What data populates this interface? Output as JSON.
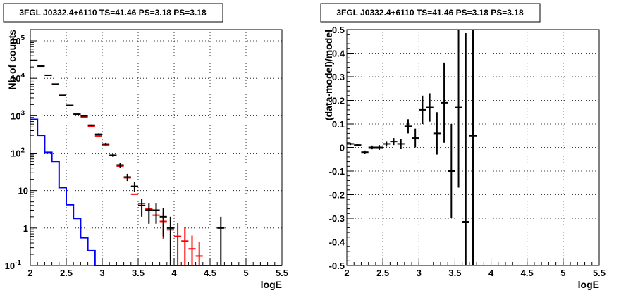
{
  "chart_data": [
    {
      "type": "histogram",
      "title": "3FGL J0332.4+6110 TS=41.46 PS=3.18 PS=3.18",
      "xlabel": "logE",
      "ylabel": "Nb of counts",
      "xlim": [
        2,
        5.5
      ],
      "ylim": [
        0.1,
        200000
      ],
      "yscale": "log",
      "grid": true,
      "xticks": [
        "2",
        "2.5",
        "3",
        "3.5",
        "4",
        "4.5",
        "5",
        "5.5"
      ],
      "yticks": [
        "10^{-1}",
        "1",
        "10",
        "10^{2}",
        "10^{3}",
        "10^{4}",
        "10^{5}"
      ],
      "colors": {
        "data": "#000000",
        "model": "#ff0000",
        "background": "#0000ff"
      },
      "series": [
        {
          "kind": "model-points",
          "x": [
            2.05,
            2.15,
            2.25,
            2.35,
            2.45,
            2.55,
            2.65,
            2.75,
            2.85,
            2.95,
            3.05,
            3.15,
            3.25,
            3.35,
            3.45,
            3.55,
            3.65,
            3.75,
            3.85,
            3.95,
            4.05,
            4.15,
            4.25,
            4.35
          ],
          "y": [
            30000,
            21000,
            12000,
            7000,
            3500,
            1900,
            1100,
            920,
            530,
            290,
            165,
            87,
            45,
            22,
            8,
            4.5,
            3.2,
            2.2,
            1.5,
            0.9,
            0.6,
            0.45,
            0.28,
            0.18
          ],
          "yerr_low": [
            0,
            0,
            0,
            0,
            0,
            0,
            0,
            0,
            0,
            0,
            0,
            0,
            0,
            0,
            0,
            0,
            0,
            0,
            0.98,
            0.75,
            0.52,
            0.4,
            0.25,
            0.17
          ],
          "yerr_high": [
            0,
            0,
            0,
            0,
            0,
            0,
            0,
            0,
            0,
            0,
            0,
            0,
            0,
            0,
            0,
            0,
            0,
            0,
            1.2,
            1.1,
            0.8,
            0.6,
            0.35,
            0.25
          ]
        },
        {
          "kind": "data-points",
          "x": [
            2.05,
            2.15,
            2.25,
            2.35,
            2.45,
            2.55,
            2.65,
            2.75,
            2.85,
            2.95,
            3.05,
            3.15,
            3.25,
            3.35,
            3.45,
            3.55,
            3.65,
            3.75,
            3.85,
            3.95,
            4.65
          ],
          "y": [
            30000,
            21000,
            12000,
            7000,
            3500,
            1900,
            1100,
            990,
            560,
            320,
            175,
            88,
            48,
            23,
            13,
            4,
            3,
            3,
            2,
            1,
            1
          ],
          "yerr_low": [
            170,
            140,
            110,
            84,
            59,
            44,
            33,
            31,
            24,
            18,
            13,
            9,
            7,
            5,
            3.6,
            2,
            1.7,
            1.7,
            1.4,
            1,
            1
          ],
          "yerr_high": [
            170,
            140,
            110,
            84,
            59,
            44,
            33,
            31,
            24,
            18,
            13,
            9,
            7,
            5,
            3.6,
            2,
            1.7,
            1.7,
            1.4,
            1,
            1
          ]
        },
        {
          "kind": "step",
          "x_edges": [
            2.0,
            2.1,
            2.2,
            2.3,
            2.4,
            2.5,
            2.6,
            2.7,
            2.8,
            2.9,
            5.5
          ],
          "y": [
            800,
            300,
            105,
            60,
            12,
            4.2,
            1.8,
            0.55,
            0.25,
            0.1
          ]
        }
      ]
    },
    {
      "type": "errorbar",
      "title": "3FGL J0332.4+6110 TS=41.46 PS=3.18 PS=3.18",
      "xlabel": "logE",
      "ylabel": "(data-model)/model",
      "xlim": [
        2,
        5.5
      ],
      "ylim": [
        -0.5,
        0.5
      ],
      "grid": true,
      "xticks": [
        "2",
        "2.5",
        "3",
        "3.5",
        "4",
        "4.5",
        "5",
        "5.5"
      ],
      "yticks": [
        "-0.5",
        "-0.4",
        "-0.3",
        "-0.2",
        "-0.1",
        "0",
        "0.1",
        "0.2",
        "0.3",
        "0.4",
        "0.5"
      ],
      "points": {
        "x": [
          2.05,
          2.15,
          2.25,
          2.35,
          2.45,
          2.55,
          2.65,
          2.75,
          2.85,
          2.95,
          3.05,
          3.15,
          3.25,
          3.35,
          3.45,
          3.55,
          3.65,
          3.75
        ],
        "y": [
          0.015,
          0.01,
          -0.02,
          0.0,
          0.0,
          0.015,
          0.025,
          0.015,
          0.09,
          0.04,
          0.16,
          0.17,
          0.06,
          0.19,
          -0.1,
          0.17,
          -0.315,
          0.05
        ],
        "yerr_low": [
          0.005,
          0.005,
          0.007,
          0.008,
          0.01,
          0.012,
          0.015,
          0.02,
          0.03,
          0.04,
          0.06,
          0.06,
          0.09,
          0.17,
          0.2,
          0.34,
          0.25,
          0.55
        ],
        "yerr_high": [
          0.005,
          0.005,
          0.007,
          0.008,
          0.01,
          0.012,
          0.015,
          0.02,
          0.03,
          0.04,
          0.06,
          0.06,
          0.09,
          0.17,
          0.2,
          0.33,
          0.8,
          0.45
        ]
      }
    }
  ]
}
